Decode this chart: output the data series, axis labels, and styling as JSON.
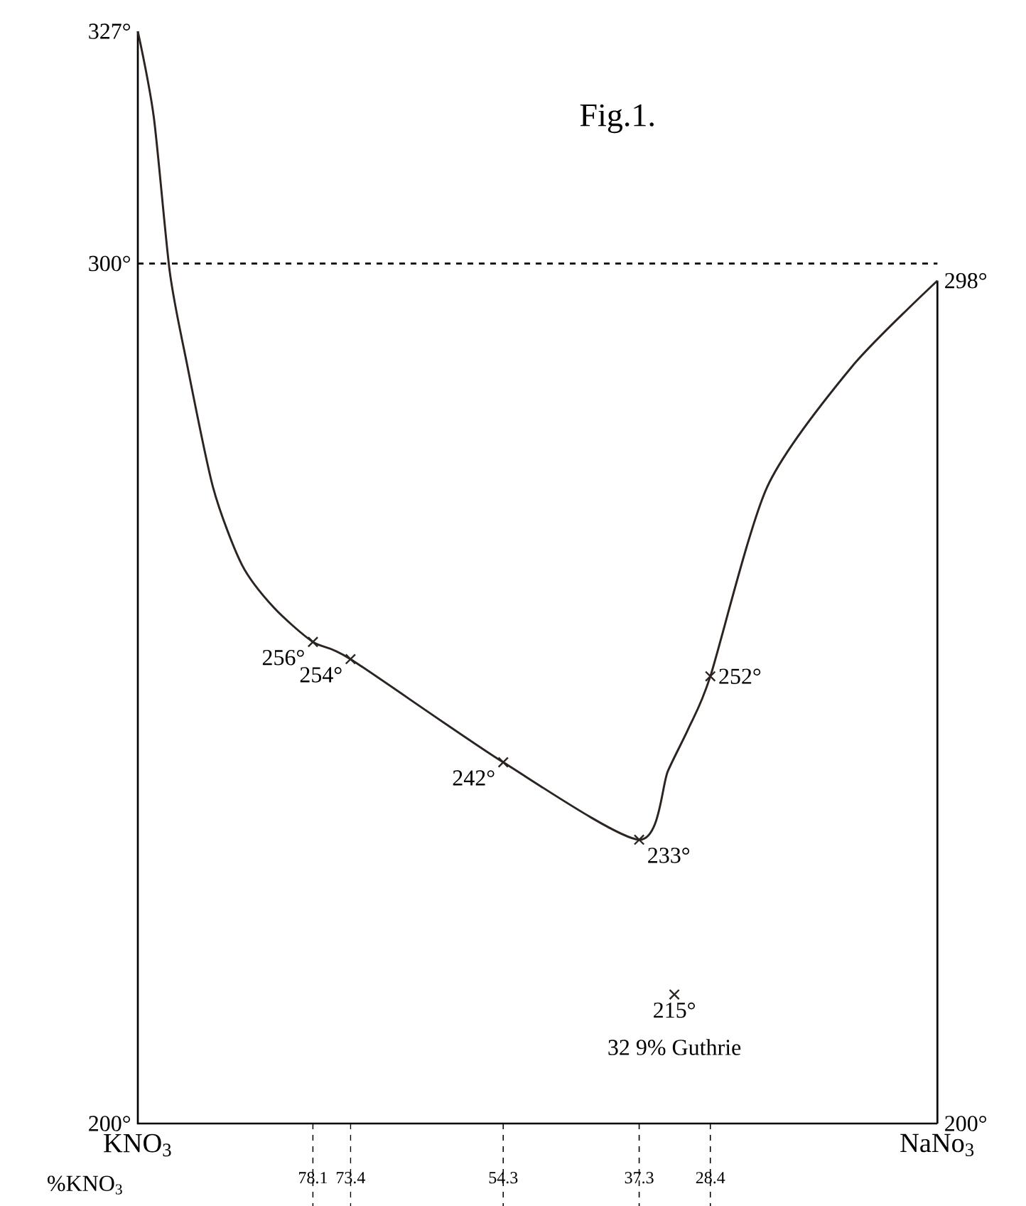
{
  "chart_data": {
    "type": "line",
    "title": "Fig.1.",
    "xlabel": "%KNO$_{3}$",
    "xlim": [
      100,
      0
    ],
    "ylim": [
      200,
      327
    ],
    "xticks": [
      78.1,
      73.4,
      54.3,
      37.3,
      28.4
    ],
    "yticks": [
      {
        "value": 200,
        "label": "200°"
      },
      {
        "value": 300,
        "label": "300°"
      },
      {
        "value": 327,
        "label": "327°"
      }
    ],
    "y2lim": [
      200,
      327
    ],
    "y2ticks": [
      {
        "value": 200,
        "label": "200°"
      },
      {
        "value": 298,
        "label": "298°"
      }
    ],
    "ref_lines": [
      {
        "axis": "y",
        "value": 300,
        "line_style": "dashed"
      }
    ],
    "series": [
      {
        "color": "#2b2420",
        "line_style": "solid",
        "marker": "none",
        "x": [
          100,
          98,
          96,
          94,
          90.6,
          87,
          83,
          78.1,
          73.4,
          54.3,
          37.3,
          33.7,
          31.1,
          28.4,
          21.3,
          10.7,
          0
        ],
        "values": [
          327,
          317,
          299,
          289,
          274,
          265,
          260,
          256,
          254,
          242,
          233,
          241,
          246,
          252,
          274,
          288,
          298
        ]
      },
      {
        "type": "scatter",
        "color": "#2b2420",
        "marker": "cross",
        "x": [
          78.1,
          73.4,
          54.3,
          37.3,
          28.4
        ],
        "values": [
          256,
          254,
          242,
          233,
          252
        ],
        "value_labels": [
          "256°",
          "254°",
          "242°",
          "233°",
          "252°"
        ]
      },
      {
        "type": "scatter",
        "color": "#2b2420",
        "marker": "cross",
        "x": [
          32.9
        ],
        "values": [
          215
        ],
        "value_labels": [
          "215°"
        ]
      }
    ],
    "annotations": [
      {
        "text": "32 9% Guthrie",
        "x": 32.9,
        "y": 215
      },
      "KNO$_{3}$",
      "NaNo$_{3}$"
    ]
  }
}
